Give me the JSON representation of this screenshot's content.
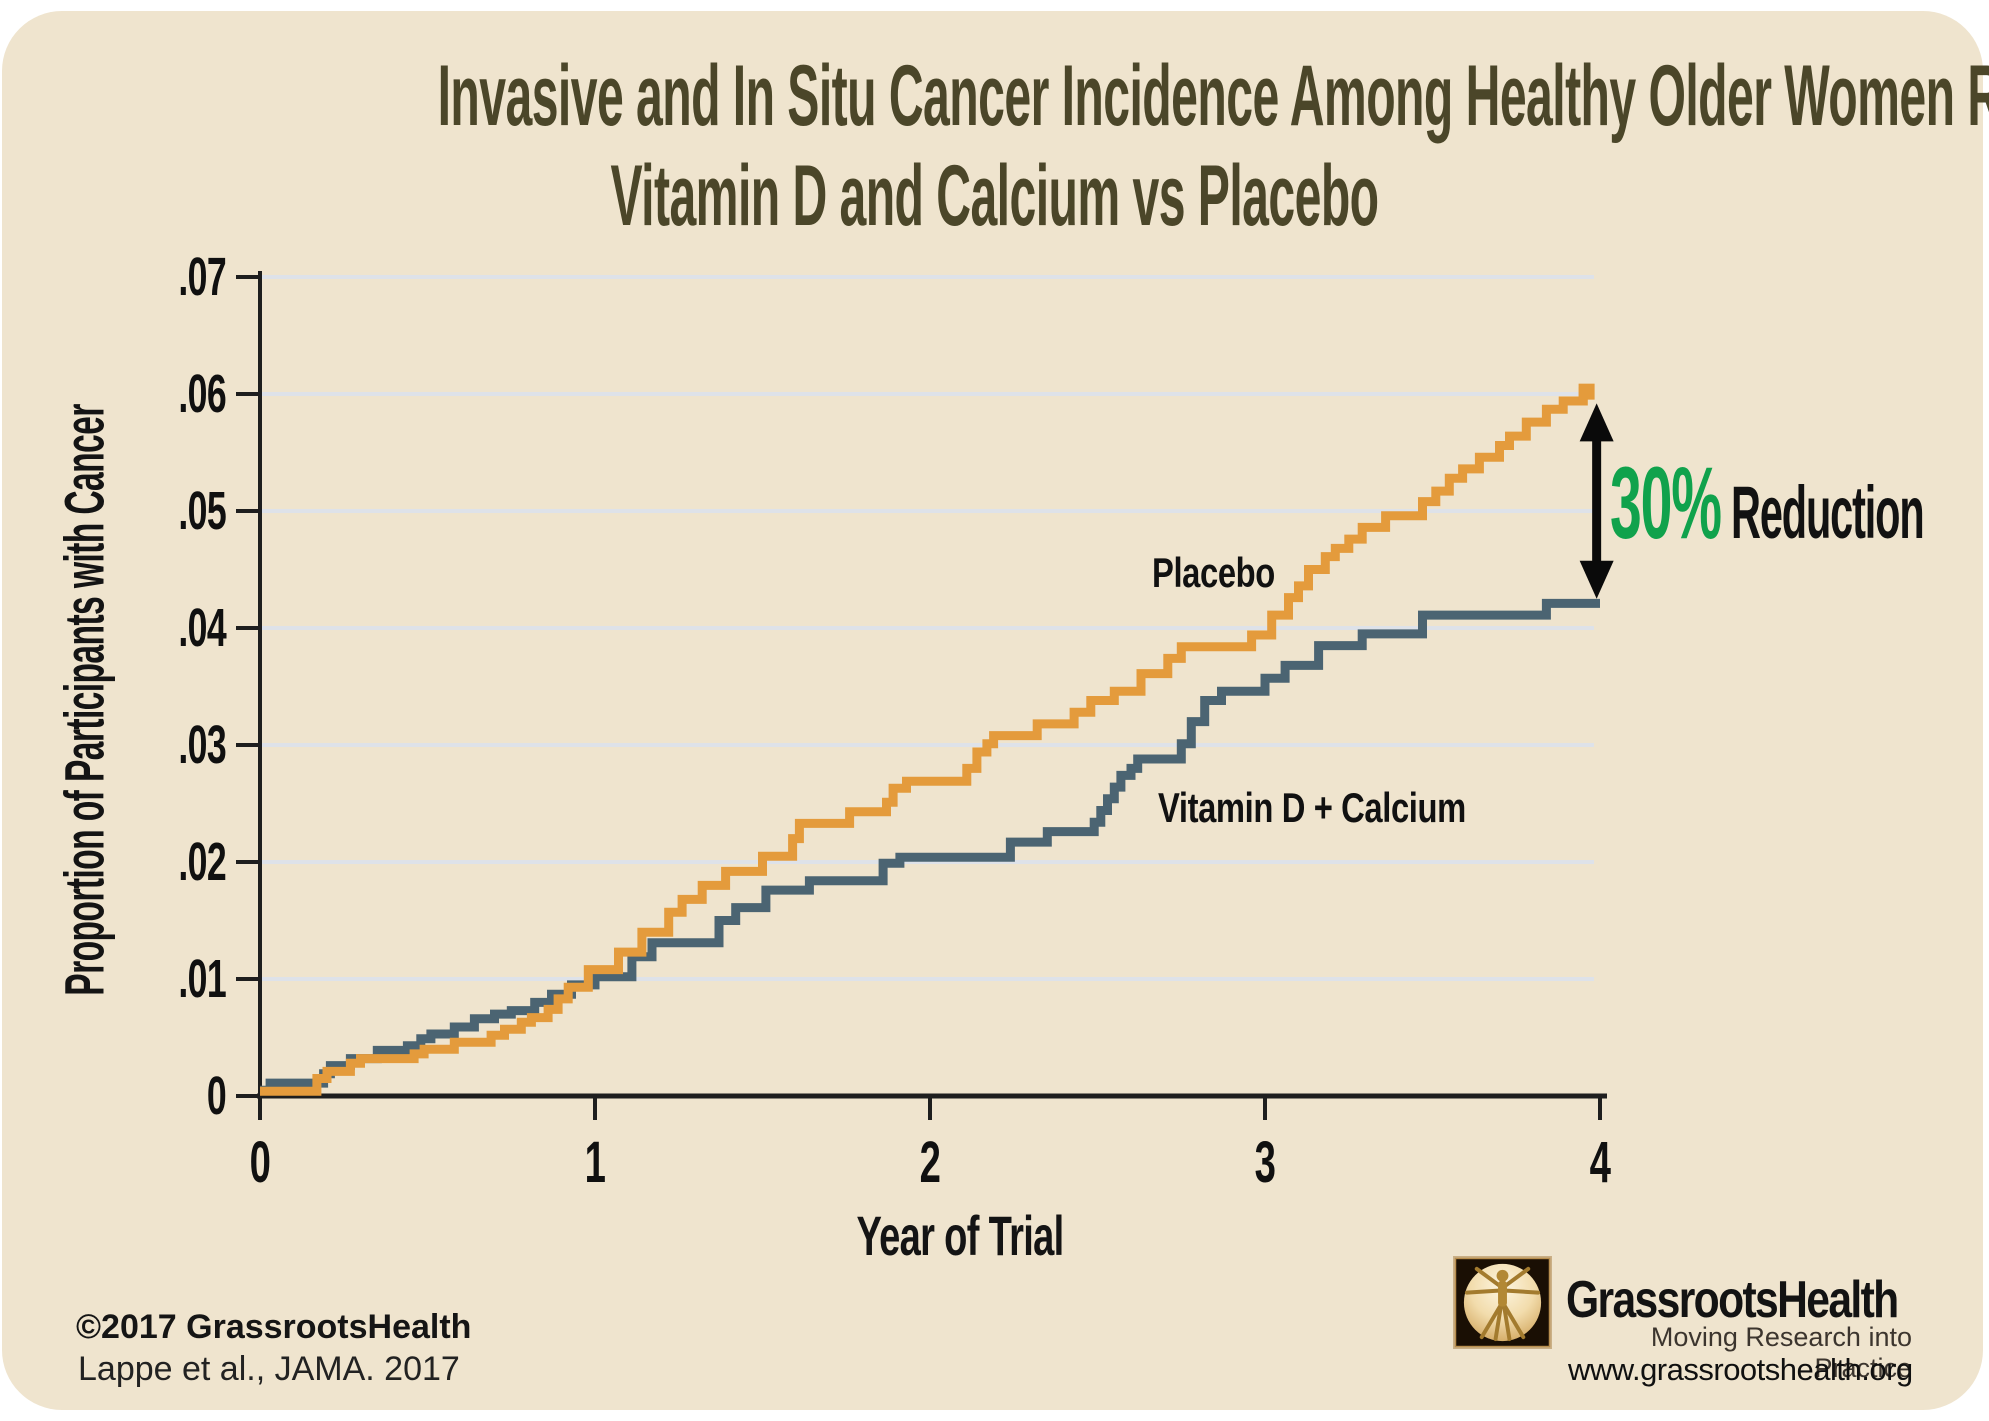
{
  "colors": {
    "page_bg": "#FFFFFF",
    "card_bg": "#EFE4CE",
    "title_text": "#4B4629",
    "axis": "#1E1E1E",
    "grid": "#DEE2E9",
    "placebo": "#E49B3C",
    "treatment": "#4B6472",
    "annotation_green": "#10A24C",
    "annotation_black": "#121212"
  },
  "title": {
    "line1": "Invasive and In Situ Cancer Incidence Among Healthy Older Women Receiving",
    "line2": "Vitamin D and Calcium vs Placebo"
  },
  "y_axis": {
    "label": "Proportion of Participants with Cancer"
  },
  "x_axis": {
    "label": "Year of Trial"
  },
  "series_labels": {
    "placebo": "Placebo",
    "treatment": "Vitamin D + Calcium"
  },
  "annotation": {
    "percent": "30%",
    "word": "Reduction"
  },
  "footer": {
    "copyright": "©2017 GrassrootsHealth",
    "citation": "Lappe et al., JAMA. 2017"
  },
  "logo": {
    "brand": "GrassrootsHealth",
    "tagline": "Moving Research into Practice",
    "website": "www.grassrootshealth.org"
  },
  "chart_data": {
    "type": "line",
    "step": true,
    "title": "Invasive and In Situ Cancer Incidence Among Healthy Older Women Receiving Vitamin D and Calcium vs Placebo",
    "xlabel": "Year of Trial",
    "ylabel": "Proportion of Participants with Cancer",
    "xlim": [
      0,
      4
    ],
    "ylim": [
      0,
      0.07
    ],
    "grid": true,
    "x_ticks": [
      {
        "v": 0,
        "label": "0"
      },
      {
        "v": 1,
        "label": "1"
      },
      {
        "v": 2,
        "label": "2"
      },
      {
        "v": 3,
        "label": "3"
      },
      {
        "v": 4,
        "label": "4"
      }
    ],
    "y_ticks": [
      {
        "v": 0.0,
        "label": "0"
      },
      {
        "v": 0.01,
        "label": ".01"
      },
      {
        "v": 0.02,
        "label": ".02"
      },
      {
        "v": 0.03,
        "label": ".03"
      },
      {
        "v": 0.04,
        "label": ".04"
      },
      {
        "v": 0.05,
        "label": ".05"
      },
      {
        "v": 0.06,
        "label": ".06"
      },
      {
        "v": 0.07,
        "label": ".07"
      }
    ],
    "series": [
      {
        "name": "Vitamin D + Calcium",
        "color": "#4B6472",
        "points": [
          [
            0.0,
            0.0005
          ],
          [
            0.03,
            0.0011
          ],
          [
            0.19,
            0.0019
          ],
          [
            0.21,
            0.0026
          ],
          [
            0.27,
            0.0032
          ],
          [
            0.35,
            0.0039
          ],
          [
            0.44,
            0.0043
          ],
          [
            0.48,
            0.0049
          ],
          [
            0.51,
            0.0053
          ],
          [
            0.58,
            0.0059
          ],
          [
            0.64,
            0.0066
          ],
          [
            0.7,
            0.007
          ],
          [
            0.75,
            0.0073
          ],
          [
            0.82,
            0.008
          ],
          [
            0.87,
            0.0087
          ],
          [
            0.93,
            0.0095
          ],
          [
            1.0,
            0.0102
          ],
          [
            1.11,
            0.0119
          ],
          [
            1.17,
            0.0131
          ],
          [
            1.37,
            0.015
          ],
          [
            1.42,
            0.0161
          ],
          [
            1.51,
            0.0176
          ],
          [
            1.64,
            0.0184
          ],
          [
            1.86,
            0.0199
          ],
          [
            1.91,
            0.0204
          ],
          [
            2.24,
            0.0217
          ],
          [
            2.35,
            0.0226
          ],
          [
            2.49,
            0.0234
          ],
          [
            2.51,
            0.0244
          ],
          [
            2.53,
            0.0254
          ],
          [
            2.55,
            0.0264
          ],
          [
            2.57,
            0.0274
          ],
          [
            2.6,
            0.028
          ],
          [
            2.62,
            0.0288
          ],
          [
            2.75,
            0.0301
          ],
          [
            2.78,
            0.032
          ],
          [
            2.82,
            0.0338
          ],
          [
            2.87,
            0.0346
          ],
          [
            3.0,
            0.0357
          ],
          [
            3.06,
            0.0368
          ],
          [
            3.16,
            0.0385
          ],
          [
            3.29,
            0.0395
          ],
          [
            3.47,
            0.0411
          ],
          [
            3.84,
            0.0421
          ],
          [
            4.0,
            0.0421
          ]
        ]
      },
      {
        "name": "Placebo",
        "color": "#E49B3C",
        "points": [
          [
            0.0,
            0.0004
          ],
          [
            0.17,
            0.0015
          ],
          [
            0.2,
            0.0021
          ],
          [
            0.27,
            0.0028
          ],
          [
            0.3,
            0.0032
          ],
          [
            0.46,
            0.0036
          ],
          [
            0.49,
            0.004
          ],
          [
            0.58,
            0.0046
          ],
          [
            0.69,
            0.0052
          ],
          [
            0.73,
            0.0057
          ],
          [
            0.78,
            0.0063
          ],
          [
            0.81,
            0.0067
          ],
          [
            0.86,
            0.0074
          ],
          [
            0.89,
            0.0083
          ],
          [
            0.92,
            0.0093
          ],
          [
            0.98,
            0.0108
          ],
          [
            1.07,
            0.0123
          ],
          [
            1.14,
            0.014
          ],
          [
            1.22,
            0.0157
          ],
          [
            1.26,
            0.0168
          ],
          [
            1.32,
            0.018
          ],
          [
            1.39,
            0.0192
          ],
          [
            1.5,
            0.0205
          ],
          [
            1.59,
            0.022
          ],
          [
            1.61,
            0.0233
          ],
          [
            1.76,
            0.0243
          ],
          [
            1.87,
            0.0251
          ],
          [
            1.89,
            0.0263
          ],
          [
            1.93,
            0.0269
          ],
          [
            2.11,
            0.028
          ],
          [
            2.14,
            0.0294
          ],
          [
            2.17,
            0.0301
          ],
          [
            2.19,
            0.0308
          ],
          [
            2.32,
            0.0318
          ],
          [
            2.43,
            0.0328
          ],
          [
            2.48,
            0.0338
          ],
          [
            2.55,
            0.0346
          ],
          [
            2.63,
            0.0361
          ],
          [
            2.71,
            0.0374
          ],
          [
            2.75,
            0.0384
          ],
          [
            2.96,
            0.0394
          ],
          [
            3.02,
            0.0411
          ],
          [
            3.07,
            0.0426
          ],
          [
            3.1,
            0.0436
          ],
          [
            3.13,
            0.045
          ],
          [
            3.18,
            0.0461
          ],
          [
            3.21,
            0.0468
          ],
          [
            3.25,
            0.0476
          ],
          [
            3.29,
            0.0486
          ],
          [
            3.36,
            0.0496
          ],
          [
            3.47,
            0.0508
          ],
          [
            3.51,
            0.0517
          ],
          [
            3.55,
            0.0528
          ],
          [
            3.59,
            0.0536
          ],
          [
            3.64,
            0.0546
          ],
          [
            3.7,
            0.0556
          ],
          [
            3.73,
            0.0564
          ],
          [
            3.78,
            0.0576
          ],
          [
            3.84,
            0.0587
          ],
          [
            3.89,
            0.0594
          ],
          [
            3.95,
            0.0602
          ],
          [
            3.98,
            0.0602
          ]
        ]
      }
    ],
    "end_marker": {
      "x": 3.96,
      "y": 0.0602,
      "color": "#E49B3C"
    },
    "annotation_arrow": {
      "x": 3.99,
      "from": 0.0425,
      "to": 0.0592,
      "label": "30% Reduction"
    },
    "legend_position": "inline-labels"
  }
}
